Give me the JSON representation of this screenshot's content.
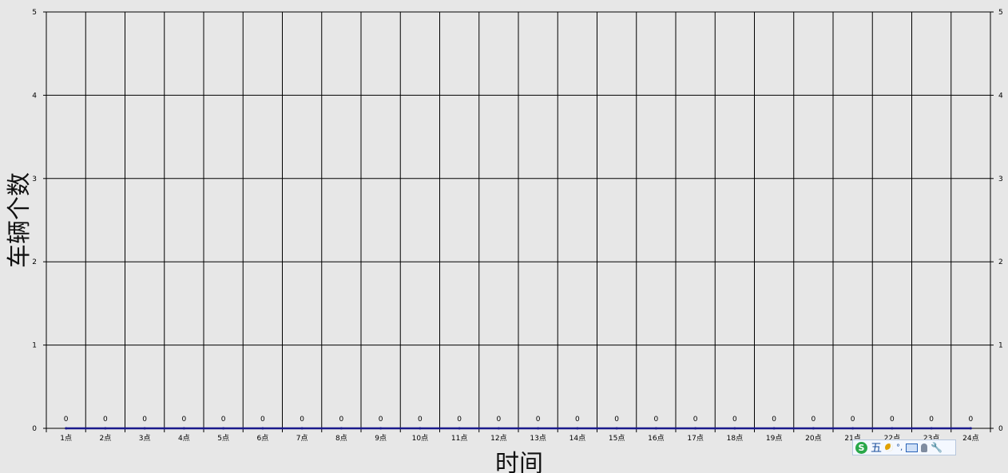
{
  "chart_data": {
    "type": "line",
    "categories": [
      "1点",
      "2点",
      "3点",
      "4点",
      "5点",
      "6点",
      "7点",
      "8点",
      "9点",
      "10点",
      "11点",
      "12点",
      "13点",
      "14点",
      "15点",
      "16点",
      "17点",
      "18点",
      "19点",
      "20点",
      "21点",
      "22点",
      "23点",
      "24点"
    ],
    "series": [
      {
        "values": [
          0,
          0,
          0,
          0,
          0,
          0,
          0,
          0,
          0,
          0,
          0,
          0,
          0,
          0,
          0,
          0,
          0,
          0,
          0,
          0,
          0,
          0,
          0,
          0
        ],
        "color": "#1a1a8c"
      }
    ],
    "ylabel": "车辆个数",
    "xlabel": "时间",
    "ylim": [
      0,
      5
    ],
    "yticks": [
      0,
      1,
      2,
      3,
      4,
      5
    ],
    "secondary_y_axis": true,
    "data_labels": true,
    "grid": true
  },
  "ime_toolbar": {
    "logo": "S",
    "mode": "五",
    "punct": "°,",
    "icons": [
      "sogou-logo-icon",
      "half-moon-icon",
      "keyboard-icon",
      "person-icon",
      "wrench-icon"
    ]
  }
}
